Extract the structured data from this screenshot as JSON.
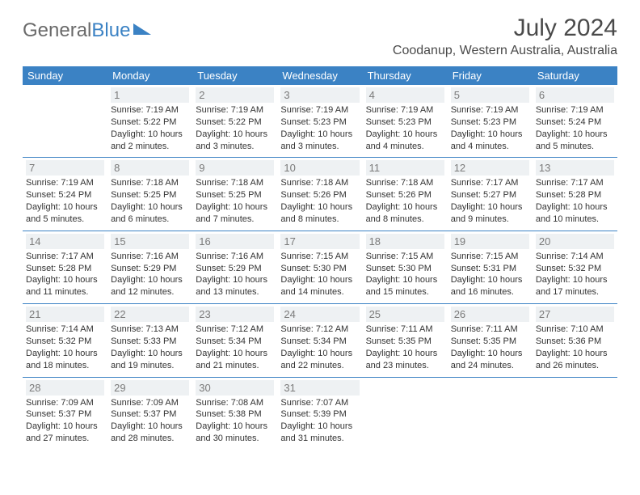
{
  "brand": {
    "part1": "General",
    "part2": "Blue"
  },
  "title": "July 2024",
  "location": "Coodanup, Western Australia, Australia",
  "colors": {
    "header_bg": "#3b82c4",
    "header_text": "#ffffff",
    "daynum_bg": "#eef1f3",
    "daynum_text": "#7a7a7a",
    "rule": "#3b82c4",
    "body_text": "#333333",
    "brand_gray": "#6a6a6a",
    "brand_blue": "#3b82c4"
  },
  "day_headers": [
    "Sunday",
    "Monday",
    "Tuesday",
    "Wednesday",
    "Thursday",
    "Friday",
    "Saturday"
  ],
  "weeks": [
    [
      null,
      {
        "n": "1",
        "sr": "Sunrise: 7:19 AM",
        "ss": "Sunset: 5:22 PM",
        "d1": "Daylight: 10 hours",
        "d2": "and 2 minutes."
      },
      {
        "n": "2",
        "sr": "Sunrise: 7:19 AM",
        "ss": "Sunset: 5:22 PM",
        "d1": "Daylight: 10 hours",
        "d2": "and 3 minutes."
      },
      {
        "n": "3",
        "sr": "Sunrise: 7:19 AM",
        "ss": "Sunset: 5:23 PM",
        "d1": "Daylight: 10 hours",
        "d2": "and 3 minutes."
      },
      {
        "n": "4",
        "sr": "Sunrise: 7:19 AM",
        "ss": "Sunset: 5:23 PM",
        "d1": "Daylight: 10 hours",
        "d2": "and 4 minutes."
      },
      {
        "n": "5",
        "sr": "Sunrise: 7:19 AM",
        "ss": "Sunset: 5:23 PM",
        "d1": "Daylight: 10 hours",
        "d2": "and 4 minutes."
      },
      {
        "n": "6",
        "sr": "Sunrise: 7:19 AM",
        "ss": "Sunset: 5:24 PM",
        "d1": "Daylight: 10 hours",
        "d2": "and 5 minutes."
      }
    ],
    [
      {
        "n": "7",
        "sr": "Sunrise: 7:19 AM",
        "ss": "Sunset: 5:24 PM",
        "d1": "Daylight: 10 hours",
        "d2": "and 5 minutes."
      },
      {
        "n": "8",
        "sr": "Sunrise: 7:18 AM",
        "ss": "Sunset: 5:25 PM",
        "d1": "Daylight: 10 hours",
        "d2": "and 6 minutes."
      },
      {
        "n": "9",
        "sr": "Sunrise: 7:18 AM",
        "ss": "Sunset: 5:25 PM",
        "d1": "Daylight: 10 hours",
        "d2": "and 7 minutes."
      },
      {
        "n": "10",
        "sr": "Sunrise: 7:18 AM",
        "ss": "Sunset: 5:26 PM",
        "d1": "Daylight: 10 hours",
        "d2": "and 8 minutes."
      },
      {
        "n": "11",
        "sr": "Sunrise: 7:18 AM",
        "ss": "Sunset: 5:26 PM",
        "d1": "Daylight: 10 hours",
        "d2": "and 8 minutes."
      },
      {
        "n": "12",
        "sr": "Sunrise: 7:17 AM",
        "ss": "Sunset: 5:27 PM",
        "d1": "Daylight: 10 hours",
        "d2": "and 9 minutes."
      },
      {
        "n": "13",
        "sr": "Sunrise: 7:17 AM",
        "ss": "Sunset: 5:28 PM",
        "d1": "Daylight: 10 hours",
        "d2": "and 10 minutes."
      }
    ],
    [
      {
        "n": "14",
        "sr": "Sunrise: 7:17 AM",
        "ss": "Sunset: 5:28 PM",
        "d1": "Daylight: 10 hours",
        "d2": "and 11 minutes."
      },
      {
        "n": "15",
        "sr": "Sunrise: 7:16 AM",
        "ss": "Sunset: 5:29 PM",
        "d1": "Daylight: 10 hours",
        "d2": "and 12 minutes."
      },
      {
        "n": "16",
        "sr": "Sunrise: 7:16 AM",
        "ss": "Sunset: 5:29 PM",
        "d1": "Daylight: 10 hours",
        "d2": "and 13 minutes."
      },
      {
        "n": "17",
        "sr": "Sunrise: 7:15 AM",
        "ss": "Sunset: 5:30 PM",
        "d1": "Daylight: 10 hours",
        "d2": "and 14 minutes."
      },
      {
        "n": "18",
        "sr": "Sunrise: 7:15 AM",
        "ss": "Sunset: 5:30 PM",
        "d1": "Daylight: 10 hours",
        "d2": "and 15 minutes."
      },
      {
        "n": "19",
        "sr": "Sunrise: 7:15 AM",
        "ss": "Sunset: 5:31 PM",
        "d1": "Daylight: 10 hours",
        "d2": "and 16 minutes."
      },
      {
        "n": "20",
        "sr": "Sunrise: 7:14 AM",
        "ss": "Sunset: 5:32 PM",
        "d1": "Daylight: 10 hours",
        "d2": "and 17 minutes."
      }
    ],
    [
      {
        "n": "21",
        "sr": "Sunrise: 7:14 AM",
        "ss": "Sunset: 5:32 PM",
        "d1": "Daylight: 10 hours",
        "d2": "and 18 minutes."
      },
      {
        "n": "22",
        "sr": "Sunrise: 7:13 AM",
        "ss": "Sunset: 5:33 PM",
        "d1": "Daylight: 10 hours",
        "d2": "and 19 minutes."
      },
      {
        "n": "23",
        "sr": "Sunrise: 7:12 AM",
        "ss": "Sunset: 5:34 PM",
        "d1": "Daylight: 10 hours",
        "d2": "and 21 minutes."
      },
      {
        "n": "24",
        "sr": "Sunrise: 7:12 AM",
        "ss": "Sunset: 5:34 PM",
        "d1": "Daylight: 10 hours",
        "d2": "and 22 minutes."
      },
      {
        "n": "25",
        "sr": "Sunrise: 7:11 AM",
        "ss": "Sunset: 5:35 PM",
        "d1": "Daylight: 10 hours",
        "d2": "and 23 minutes."
      },
      {
        "n": "26",
        "sr": "Sunrise: 7:11 AM",
        "ss": "Sunset: 5:35 PM",
        "d1": "Daylight: 10 hours",
        "d2": "and 24 minutes."
      },
      {
        "n": "27",
        "sr": "Sunrise: 7:10 AM",
        "ss": "Sunset: 5:36 PM",
        "d1": "Daylight: 10 hours",
        "d2": "and 26 minutes."
      }
    ],
    [
      {
        "n": "28",
        "sr": "Sunrise: 7:09 AM",
        "ss": "Sunset: 5:37 PM",
        "d1": "Daylight: 10 hours",
        "d2": "and 27 minutes."
      },
      {
        "n": "29",
        "sr": "Sunrise: 7:09 AM",
        "ss": "Sunset: 5:37 PM",
        "d1": "Daylight: 10 hours",
        "d2": "and 28 minutes."
      },
      {
        "n": "30",
        "sr": "Sunrise: 7:08 AM",
        "ss": "Sunset: 5:38 PM",
        "d1": "Daylight: 10 hours",
        "d2": "and 30 minutes."
      },
      {
        "n": "31",
        "sr": "Sunrise: 7:07 AM",
        "ss": "Sunset: 5:39 PM",
        "d1": "Daylight: 10 hours",
        "d2": "and 31 minutes."
      },
      null,
      null,
      null
    ]
  ]
}
